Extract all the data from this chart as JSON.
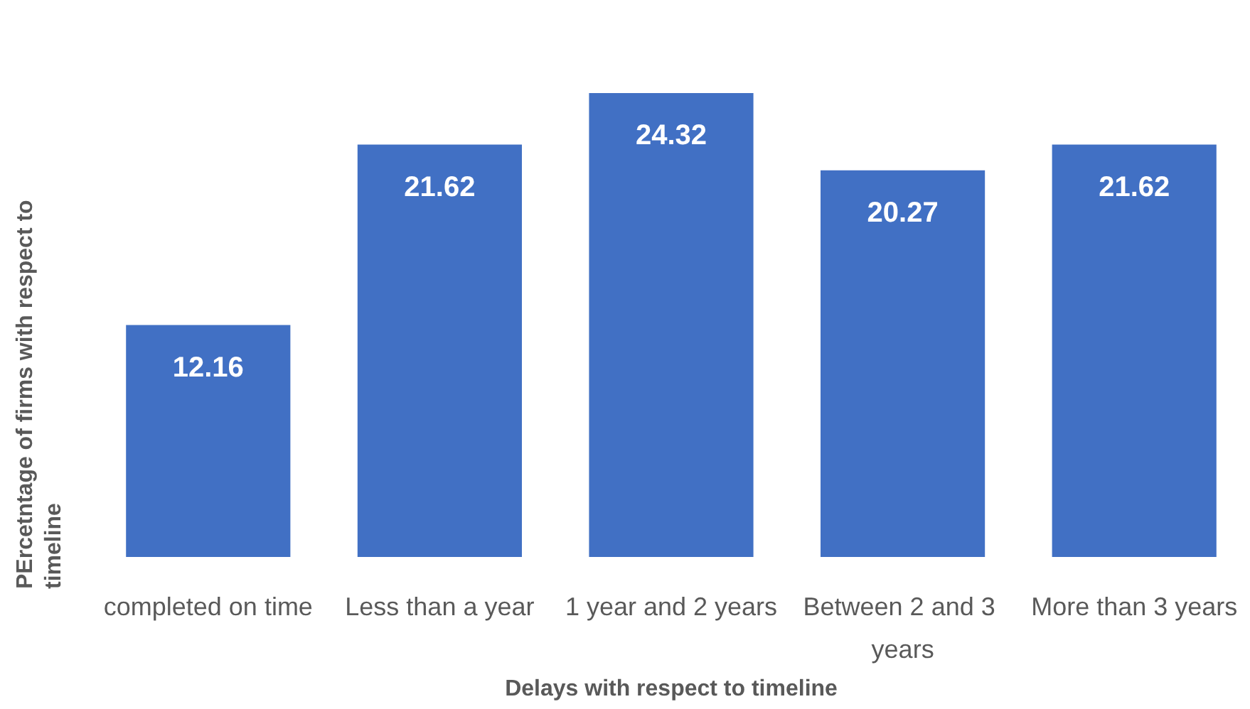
{
  "chart_data": {
    "type": "bar",
    "xlabel": "Delays with respect to timeline",
    "ylabel": "PErcetntage of firms with respect to timeline",
    "categories": [
      "completed on time",
      "Less than a year",
      "1 year and 2 years",
      "Between 2 and 3 years",
      "More than 3 years"
    ],
    "values": [
      12.16,
      21.62,
      24.32,
      20.27,
      21.62
    ],
    "color": "#4170c4",
    "data_labels": true,
    "grid": false,
    "tick_labels": "x"
  }
}
